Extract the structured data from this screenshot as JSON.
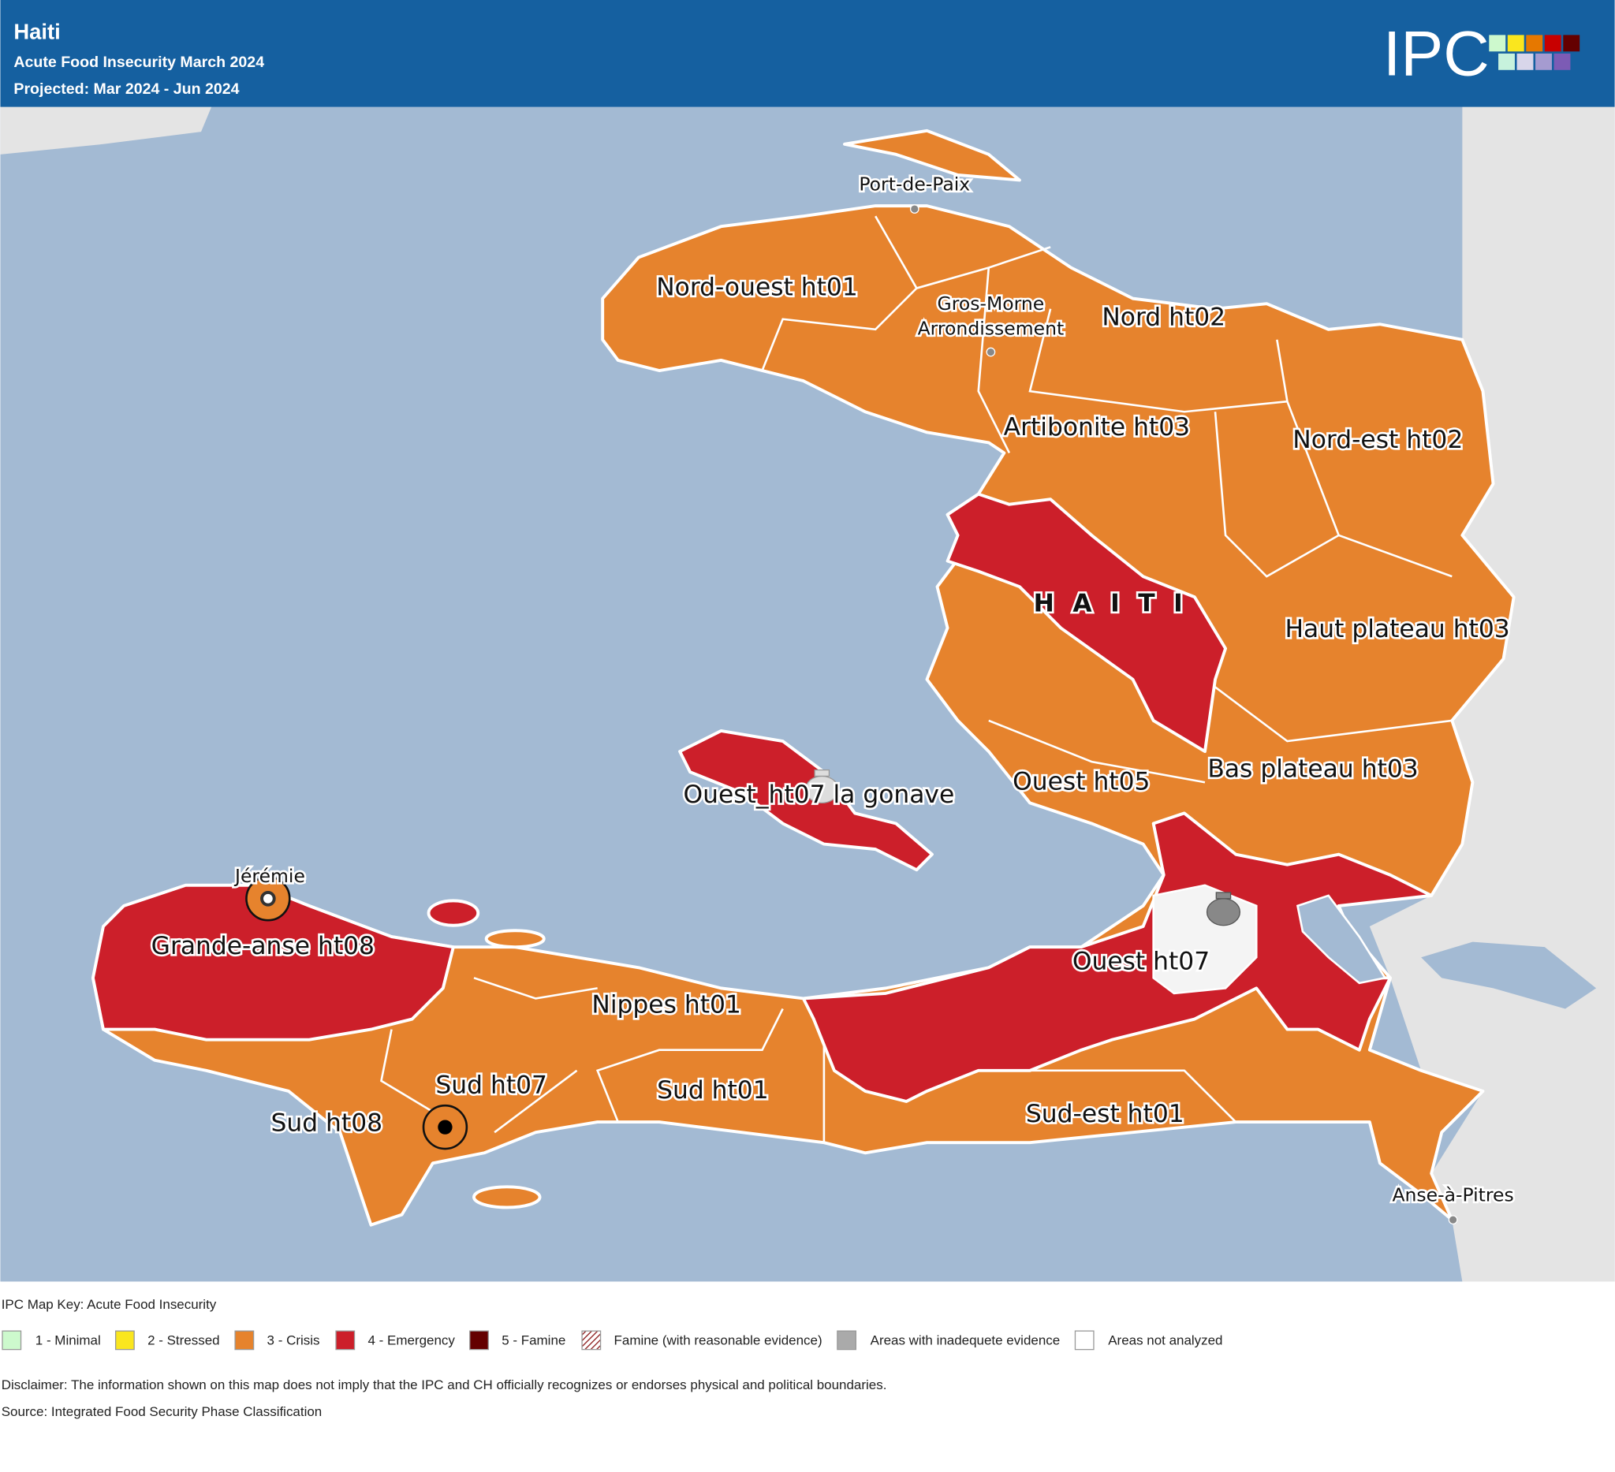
{
  "header": {
    "title": "Haiti",
    "subtitle": "Acute Food Insecurity March 2024",
    "period": "Projected: Mar 2024 - Jun 2024",
    "logo": "IPC"
  },
  "map": {
    "country": "HAITI",
    "labels": [
      "Port-de-Paix",
      "Gros-Morne",
      "Arrondissement",
      "Nord-ouest ht01",
      "Nord ht02",
      "Artibonite ht03",
      "Nord-est ht02",
      "Haut plateau ht03",
      "Bas plateau ht03",
      "Ouest ht05",
      "Ouest_ht07 la gonave",
      "Jérémie",
      "Grande-anse ht08",
      "Ouest ht07",
      "Nippes ht01",
      "Sud ht07",
      "Sud ht01",
      "Sud ht08",
      "Sud-est ht01",
      "Anse-à-Pitres"
    ]
  },
  "legend": {
    "title": "IPC Map Key: Acute Food Insecurity",
    "items": [
      "1 - Minimal",
      "2 - Stressed",
      "3 - Crisis",
      "4 - Emergency",
      "5 - Famine",
      "Famine (with reasonable evidence)",
      "Areas with inadequete evidence",
      "Areas not analyzed"
    ]
  },
  "footer": {
    "disclaimer": "Disclaimer: The information shown on this map does not imply that the IPC and CH officially recognizes or endorses physical and political boundaries.",
    "source": "Source: Integrated Food Security Phase Classification"
  }
}
